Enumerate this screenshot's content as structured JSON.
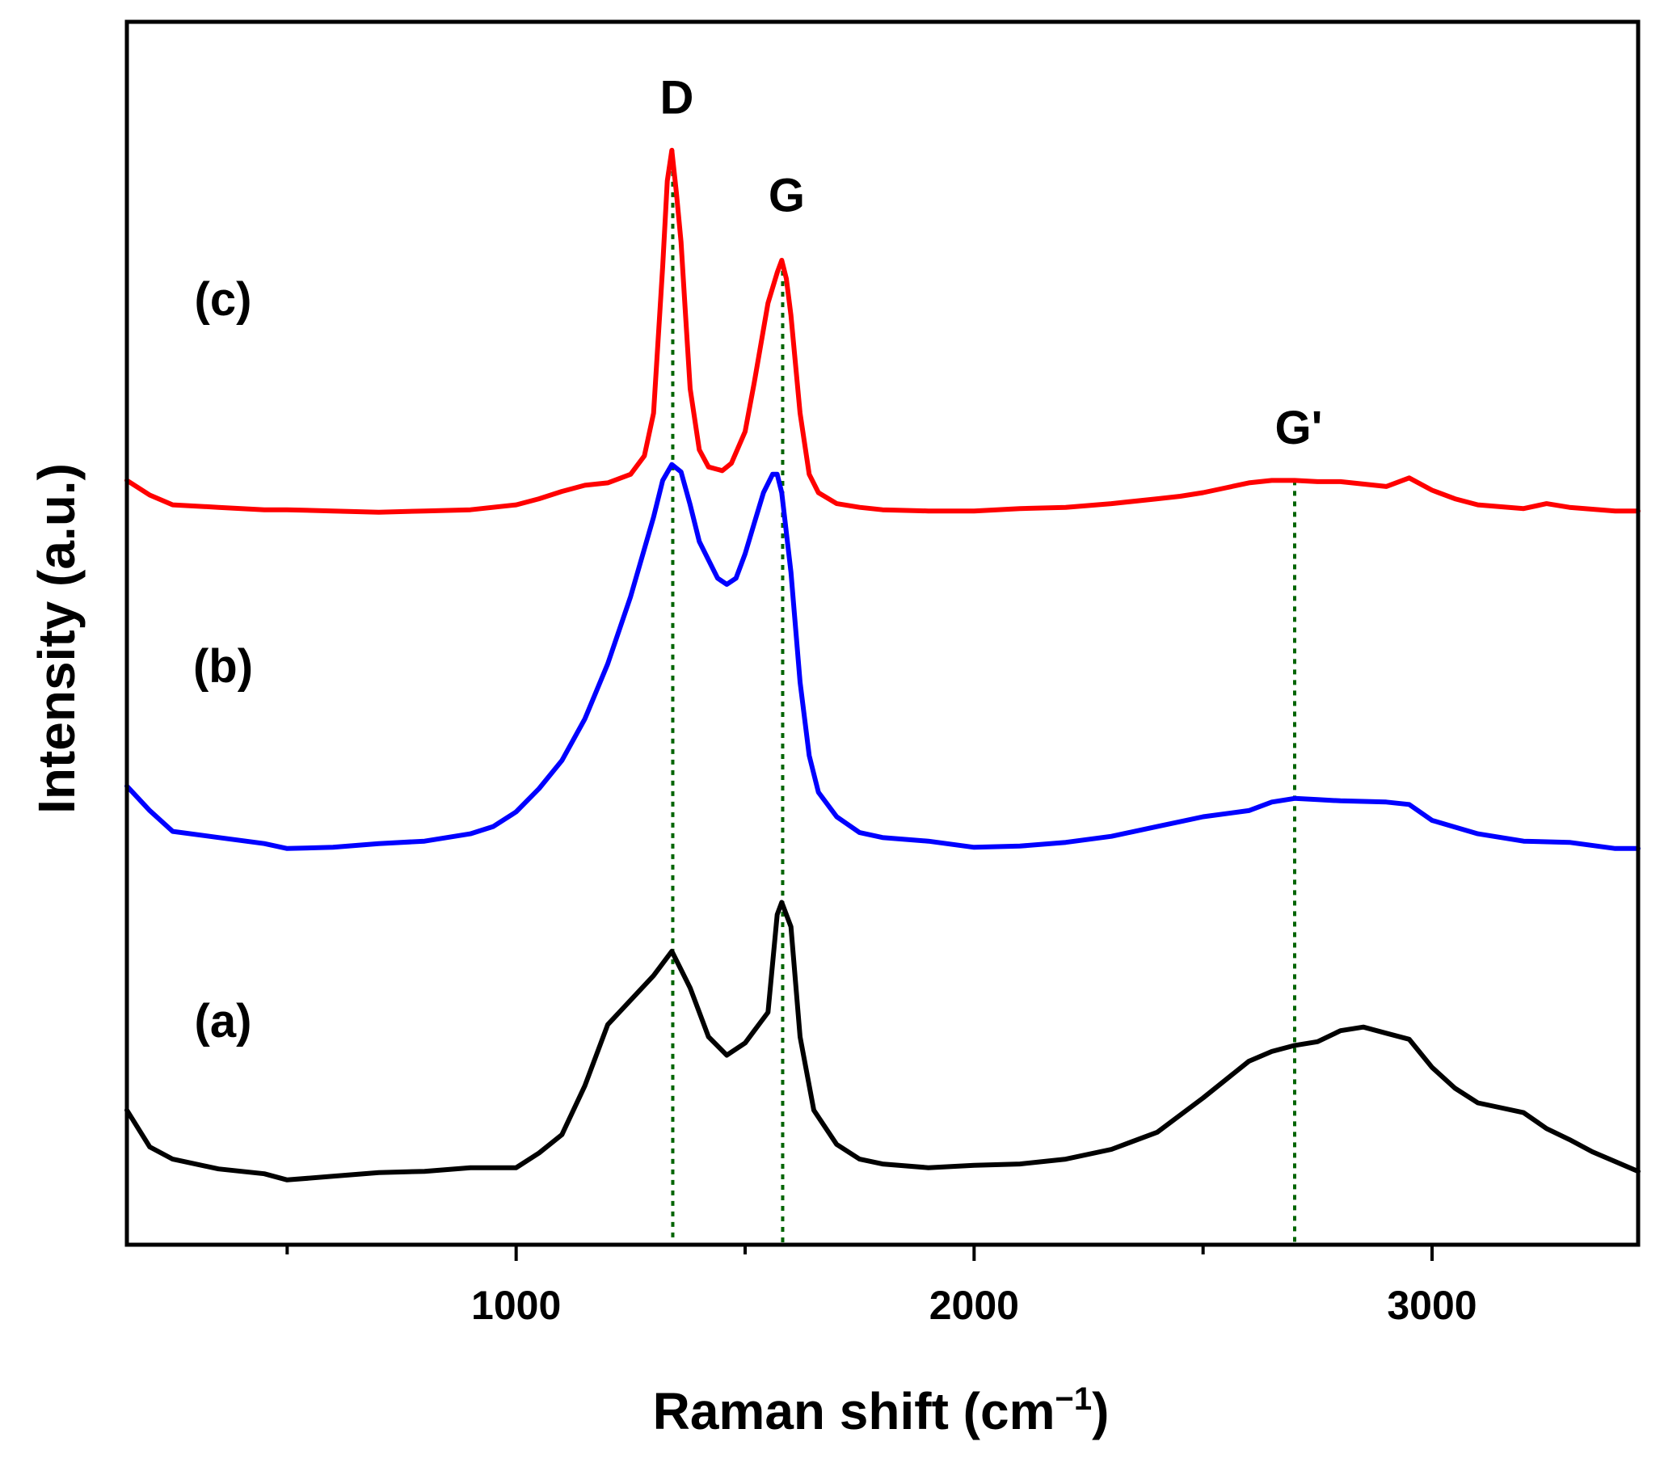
{
  "chart_data": {
    "type": "line",
    "title": "",
    "xlabel": "Raman shift (cm",
    "xlabel_sup": "−1",
    "xlabel_close": ")",
    "ylabel": "Intensity (a.u.)",
    "xlim": [
      150,
      3450
    ],
    "ylim": [
      0,
      100
    ],
    "x_ticks": [
      1000,
      2000,
      3000
    ],
    "x_minor_ticks": [
      500,
      1500,
      2500
    ],
    "y_ticks_shown": false,
    "legend": "none",
    "series": [
      {
        "name": "(a)",
        "color": "#000000",
        "x": [
          150,
          200,
          250,
          350,
          450,
          500,
          600,
          700,
          800,
          900,
          1000,
          1050,
          1100,
          1150,
          1200,
          1250,
          1300,
          1340,
          1360,
          1380,
          1420,
          1460,
          1500,
          1520,
          1550,
          1570,
          1580,
          1600,
          1620,
          1650,
          1700,
          1750,
          1800,
          1900,
          2000,
          2100,
          2200,
          2300,
          2400,
          2500,
          2600,
          2650,
          2700,
          2750,
          2800,
          2850,
          2900,
          2950,
          3000,
          3050,
          3100,
          3150,
          3200,
          3250,
          3300,
          3350,
          3400,
          3450
        ],
        "values": [
          11,
          8,
          7,
          6.2,
          5.8,
          5.3,
          5.6,
          5.9,
          6.0,
          6.3,
          6.3,
          7.5,
          9.0,
          13,
          18,
          20,
          22,
          24,
          22.5,
          21,
          17,
          15.5,
          16.5,
          17.5,
          19,
          27,
          28,
          26,
          17,
          11,
          8.2,
          7,
          6.6,
          6.3,
          6.5,
          6.6,
          7.0,
          7.8,
          9.2,
          12,
          15,
          15.8,
          16.3,
          16.6,
          17.5,
          17.8,
          17.3,
          16.8,
          14.5,
          12.8,
          11.6,
          11.2,
          10.8,
          9.5,
          8.6,
          7.6,
          6.8,
          6.0
        ]
      },
      {
        "name": "(b)",
        "color": "#0000ff",
        "x": [
          150,
          200,
          250,
          350,
          450,
          500,
          600,
          700,
          800,
          900,
          950,
          1000,
          1050,
          1100,
          1150,
          1200,
          1250,
          1300,
          1320,
          1340,
          1360,
          1380,
          1400,
          1440,
          1460,
          1480,
          1500,
          1520,
          1540,
          1560,
          1570,
          1580,
          1600,
          1620,
          1640,
          1660,
          1700,
          1750,
          1800,
          1900,
          2000,
          2100,
          2200,
          2300,
          2400,
          2500,
          2600,
          2650,
          2700,
          2750,
          2800,
          2900,
          2950,
          3000,
          3100,
          3200,
          3300,
          3400,
          3450
        ],
        "values": [
          37.5,
          35.5,
          33.8,
          33.3,
          32.8,
          32.4,
          32.5,
          32.8,
          33.0,
          33.6,
          34.2,
          35.4,
          37.3,
          39.6,
          43,
          47.5,
          53,
          59.5,
          62.5,
          63.8,
          63.2,
          60.5,
          57.5,
          54.5,
          54.0,
          54.5,
          56.5,
          59,
          61.5,
          63.0,
          63.0,
          61.5,
          55,
          46,
          40,
          37,
          35,
          33.7,
          33.3,
          33.0,
          32.5,
          32.6,
          32.9,
          33.4,
          34.2,
          35.0,
          35.5,
          36.2,
          36.5,
          36.4,
          36.3,
          36.2,
          36.0,
          34.7,
          33.6,
          33.0,
          32.9,
          32.4,
          32.4
        ]
      },
      {
        "name": "(c)",
        "color": "#ff0000",
        "x": [
          150,
          200,
          250,
          350,
          450,
          500,
          600,
          700,
          800,
          900,
          1000,
          1050,
          1100,
          1150,
          1200,
          1250,
          1280,
          1300,
          1320,
          1330,
          1340,
          1350,
          1360,
          1370,
          1380,
          1400,
          1420,
          1450,
          1470,
          1500,
          1520,
          1550,
          1570,
          1580,
          1590,
          1600,
          1620,
          1640,
          1660,
          1700,
          1750,
          1800,
          1900,
          2000,
          2100,
          2200,
          2300,
          2400,
          2450,
          2500,
          2550,
          2600,
          2650,
          2700,
          2750,
          2800,
          2850,
          2900,
          2950,
          3000,
          3050,
          3100,
          3200,
          3250,
          3300,
          3400,
          3450
        ],
        "values": [
          62.5,
          61.3,
          60.5,
          60.3,
          60.1,
          60.1,
          60.0,
          59.9,
          60.0,
          60.1,
          60.5,
          61.0,
          61.6,
          62.1,
          62.3,
          63.0,
          64.5,
          68,
          80,
          87,
          89.5,
          86,
          82,
          76,
          70,
          65,
          63.6,
          63.3,
          63.9,
          66.5,
          70.5,
          77,
          79.5,
          80.5,
          79,
          76,
          68,
          63,
          61.5,
          60.6,
          60.3,
          60.1,
          60.0,
          60.0,
          60.2,
          60.3,
          60.6,
          61.0,
          61.2,
          61.5,
          61.9,
          62.3,
          62.5,
          62.5,
          62.4,
          62.4,
          62.2,
          62.0,
          62.7,
          61.7,
          61.0,
          60.5,
          60.2,
          60.6,
          60.3,
          60.0,
          60.0
        ]
      }
    ],
    "series_labels": [
      {
        "text": "(a)",
        "x": 360,
        "y": 17
      },
      {
        "text": "(b)",
        "x": 360,
        "y": 46
      },
      {
        "text": "(c)",
        "x": 360,
        "y": 76
      }
    ],
    "peak_markers": [
      {
        "label": "D",
        "x": 1342,
        "y_top": 89.5,
        "label_y": 92.5
      },
      {
        "label": "G",
        "x": 1582,
        "y_top": 80.5,
        "label_y": 84.5
      },
      {
        "label": "G'",
        "x": 2700,
        "y_top": 62.5,
        "label_y": 65.5
      }
    ],
    "reference_line_color": "#006400"
  }
}
